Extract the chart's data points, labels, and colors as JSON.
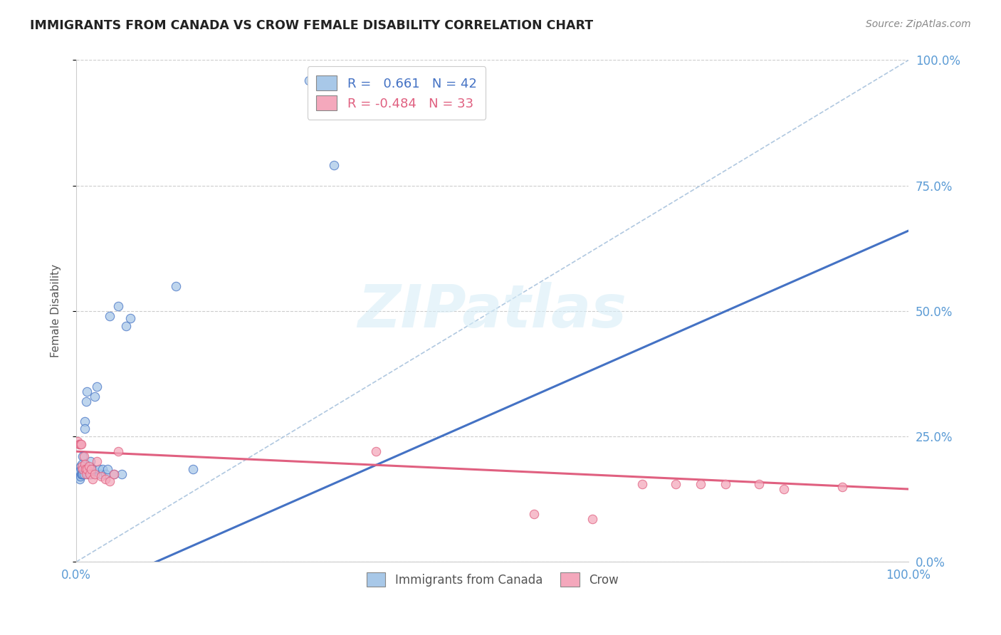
{
  "title": "IMMIGRANTS FROM CANADA VS CROW FEMALE DISABILITY CORRELATION CHART",
  "source": "Source: ZipAtlas.com",
  "ylabel": "Female Disability",
  "ytick_labels": [
    "0.0%",
    "25.0%",
    "50.0%",
    "75.0%",
    "100.0%"
  ],
  "ytick_values": [
    0.0,
    0.25,
    0.5,
    0.75,
    1.0
  ],
  "xtick_labels": [
    "0.0%",
    "",
    "",
    "",
    "100.0%"
  ],
  "xtick_values": [
    0.0,
    0.25,
    0.5,
    0.75,
    1.0
  ],
  "legend_entries": [
    {
      "label": "Immigrants from Canada",
      "R": "0.661",
      "N": "42",
      "color": "#a8c8e8"
    },
    {
      "label": "Crow",
      "R": "-0.484",
      "N": "33",
      "color": "#f4a8bc"
    }
  ],
  "blue_scatter_x": [
    0.002,
    0.003,
    0.004,
    0.004,
    0.005,
    0.005,
    0.006,
    0.006,
    0.007,
    0.007,
    0.008,
    0.008,
    0.009,
    0.009,
    0.01,
    0.01,
    0.011,
    0.012,
    0.013,
    0.014,
    0.015,
    0.016,
    0.017,
    0.018,
    0.02,
    0.022,
    0.025,
    0.027,
    0.03,
    0.032,
    0.035,
    0.038,
    0.04,
    0.045,
    0.05,
    0.055,
    0.06,
    0.065,
    0.12,
    0.14,
    0.28,
    0.31
  ],
  "blue_scatter_y": [
    0.175,
    0.17,
    0.165,
    0.18,
    0.19,
    0.17,
    0.185,
    0.175,
    0.195,
    0.175,
    0.21,
    0.175,
    0.185,
    0.175,
    0.28,
    0.265,
    0.195,
    0.32,
    0.34,
    0.175,
    0.18,
    0.175,
    0.2,
    0.175,
    0.185,
    0.33,
    0.35,
    0.185,
    0.175,
    0.185,
    0.175,
    0.185,
    0.49,
    0.175,
    0.51,
    0.175,
    0.47,
    0.485,
    0.55,
    0.185,
    0.96,
    0.79
  ],
  "pink_scatter_x": [
    0.002,
    0.003,
    0.004,
    0.005,
    0.006,
    0.007,
    0.008,
    0.009,
    0.01,
    0.011,
    0.012,
    0.013,
    0.015,
    0.016,
    0.018,
    0.02,
    0.022,
    0.025,
    0.03,
    0.035,
    0.04,
    0.045,
    0.05,
    0.36,
    0.55,
    0.62,
    0.68,
    0.72,
    0.75,
    0.78,
    0.82,
    0.85,
    0.92
  ],
  "pink_scatter_y": [
    0.24,
    0.235,
    0.235,
    0.235,
    0.235,
    0.19,
    0.185,
    0.21,
    0.195,
    0.185,
    0.175,
    0.185,
    0.19,
    0.175,
    0.185,
    0.165,
    0.175,
    0.2,
    0.17,
    0.165,
    0.16,
    0.175,
    0.22,
    0.22,
    0.095,
    0.085,
    0.155,
    0.155,
    0.155,
    0.155,
    0.155,
    0.145,
    0.15
  ],
  "blue_line_x": [
    0.0,
    1.0
  ],
  "blue_line_y": [
    -0.07,
    0.66
  ],
  "pink_line_x": [
    0.0,
    1.0
  ],
  "pink_line_y": [
    0.22,
    0.145
  ],
  "diagonal_line_color": "#b0c8e0",
  "blue_line_color": "#4472c4",
  "pink_line_color": "#e06080",
  "background_color": "#ffffff",
  "grid_color": "#cccccc",
  "title_color": "#222222",
  "axis_label_color": "#5b9bd5",
  "ylabel_color": "#555555",
  "scatter_alpha": 0.75,
  "scatter_size": 80
}
